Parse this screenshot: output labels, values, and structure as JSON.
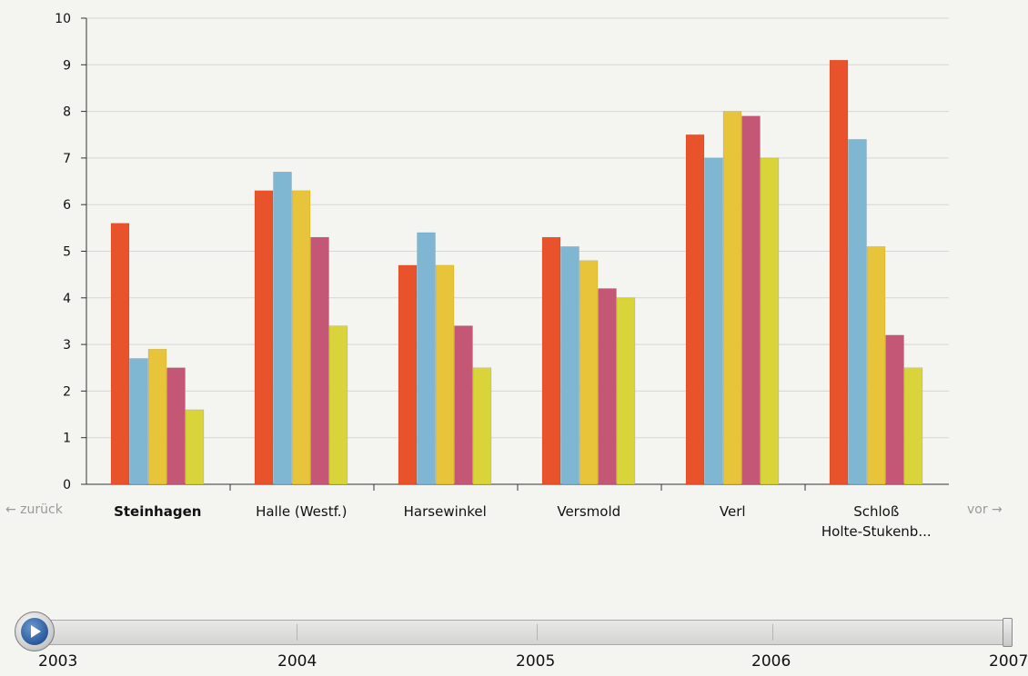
{
  "chart_data": {
    "type": "bar",
    "categories": [
      "Steinhagen",
      "Halle (Westf.)",
      "Harsewinkel",
      "Versmold",
      "Verl",
      "Schloß Holte-Stukenb..."
    ],
    "category_lines": [
      [
        "Steinhagen"
      ],
      [
        "Halle (Westf.)"
      ],
      [
        "Harsewinkel"
      ],
      [
        "Versmold"
      ],
      [
        "Verl"
      ],
      [
        "Schloß",
        "Holte-Stukenb..."
      ]
    ],
    "series": [
      {
        "color": "#e8532b",
        "values": [
          5.6,
          6.3,
          4.7,
          5.3,
          7.5,
          9.1
        ]
      },
      {
        "color": "#7fb7d3",
        "values": [
          2.7,
          6.7,
          5.4,
          5.1,
          7.0,
          7.4
        ]
      },
      {
        "color": "#e8c43a",
        "values": [
          2.9,
          6.3,
          4.7,
          4.8,
          8.0,
          5.1
        ]
      },
      {
        "color": "#c55776",
        "values": [
          2.5,
          5.3,
          3.4,
          4.2,
          7.9,
          3.2
        ]
      },
      {
        "color": "#d8d43a",
        "values": [
          1.6,
          3.4,
          2.5,
          4.0,
          7.0,
          2.5
        ]
      }
    ],
    "yticks": [
      0,
      1,
      2,
      3,
      4,
      5,
      6,
      7,
      8,
      9,
      10
    ],
    "ylim": [
      0,
      10
    ],
    "grid": true,
    "title": "",
    "xlabel": "",
    "ylabel": ""
  },
  "nav": {
    "back_label": "← zurück",
    "forward_label": "vor →"
  },
  "timeline": {
    "years": [
      "2003",
      "2004",
      "2005",
      "2006",
      "2007"
    ],
    "position": 1.0
  }
}
